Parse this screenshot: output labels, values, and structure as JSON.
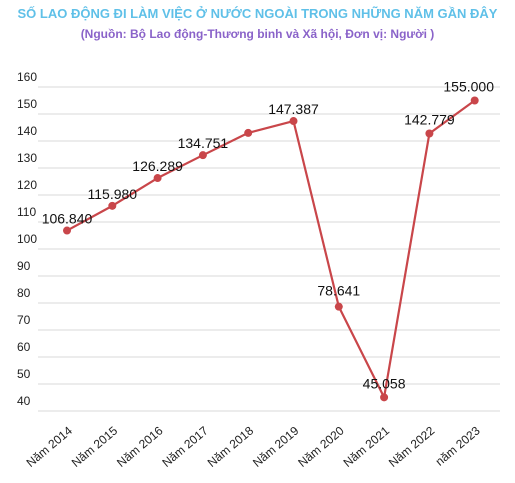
{
  "chart_data": {
    "type": "line",
    "title": "SỐ LAO ĐỘNG ĐI LÀM VIỆC Ở NƯỚC NGOÀI TRONG NHỮNG NĂM GẦN ĐÂY",
    "subtitle": "(Nguồn: Bộ Lao động-Thương binh và Xã hội, Đơn vị: Người )",
    "xlabel": "",
    "ylabel": "",
    "categories": [
      "Năm 2014",
      "Năm 2015",
      "Năm 2016",
      "Năm 2017",
      "Năm 2018",
      "Năm 2019",
      "Năm 2020",
      "Năm 2021",
      "Năm 2022",
      "năm 2023"
    ],
    "series": [
      {
        "values": [
          106.84,
          115.98,
          126.289,
          134.751,
          143,
          147.387,
          78.641,
          45.058,
          142.779,
          155
        ],
        "labels": [
          "106.840",
          "115.980",
          "126.289",
          "134.751",
          "",
          "147.387",
          "78.641",
          "45.058",
          "142.779",
          "155.000"
        ],
        "color": "#c9464a"
      }
    ],
    "yticks": [
      "40",
      "50",
      "60",
      "70",
      "80",
      "90",
      "100",
      "110",
      "120",
      "130",
      "140",
      "150",
      "160"
    ],
    "ylim": [
      40,
      160
    ],
    "grid": true,
    "legend": "none",
    "colors": {
      "title": "#5fc0e8",
      "subtitle": "#8a63c9",
      "line": "#c9464a",
      "grid": "#d9d9d9"
    }
  }
}
